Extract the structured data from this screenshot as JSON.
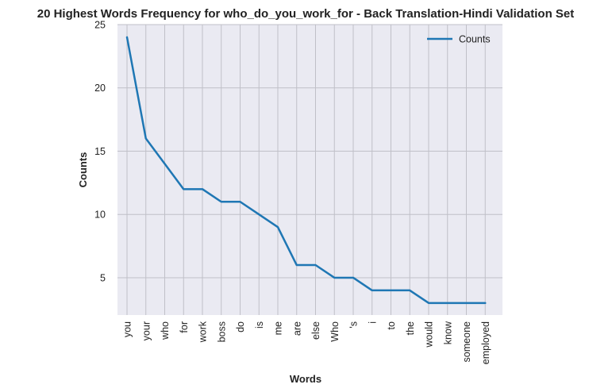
{
  "chart_data": {
    "type": "line",
    "title": "20 Highest Words Frequency for who_do_you_work_for - Back Translation-Hindi Validation Set",
    "xlabel": "Words",
    "ylabel": "Counts",
    "categories": [
      "you",
      "your",
      "who",
      "for",
      "work",
      "boss",
      "do",
      "is",
      "me",
      "are",
      "else",
      "Who",
      "'s",
      "i",
      "to",
      "the",
      "would",
      "know",
      "someone",
      "employed"
    ],
    "series": [
      {
        "name": "Counts",
        "values": [
          24,
          16,
          14,
          12,
          12,
          11,
          11,
          10,
          9,
          6,
          6,
          5,
          5,
          4,
          4,
          4,
          3,
          3,
          3,
          3
        ],
        "color": "#1f77b4"
      }
    ],
    "ylim": [
      2.05,
      25
    ],
    "yticks": [
      5,
      10,
      15,
      20,
      25
    ],
    "grid": true,
    "legend_position": "top-right"
  }
}
